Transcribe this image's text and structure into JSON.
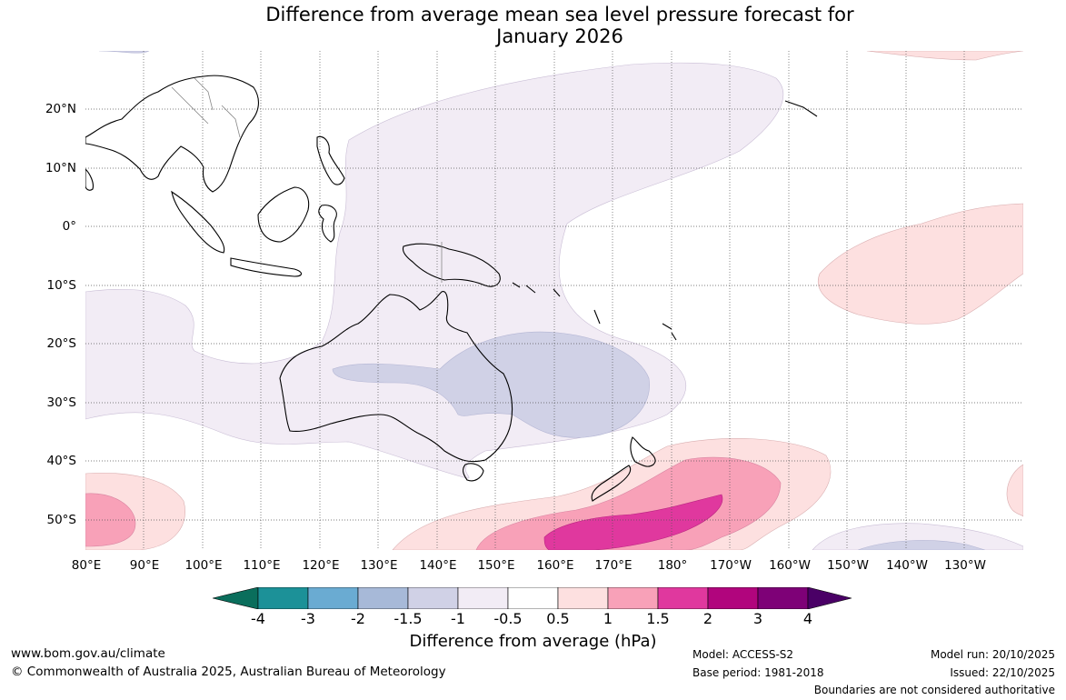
{
  "title": {
    "line1": "Difference from average mean sea level pressure forecast for",
    "line2": "January 2026"
  },
  "map": {
    "lat_labels": [
      "20°N",
      "10°N",
      "0°",
      "10°S",
      "20°S",
      "30°S",
      "40°S",
      "50°S"
    ],
    "lon_labels": [
      "80°E",
      "90°E",
      "100°E",
      "110°E",
      "120°E",
      "130°E",
      "140°E",
      "150°E",
      "160°E",
      "170°E",
      "180°",
      "170°W",
      "160°W",
      "150°W",
      "140°W",
      "130°W"
    ],
    "colors": {
      "ocean": "#ffffff",
      "coast": "#000000",
      "border": "#888888",
      "grid": "#555555"
    }
  },
  "colorbar": {
    "ticks": [
      "-4",
      "-3",
      "-2",
      "-1.5",
      "-1",
      "-0.5",
      "0.5",
      "1",
      "1.5",
      "2",
      "3",
      "4"
    ],
    "colors": [
      "#0a6e5c",
      "#1c9198",
      "#6aabd2",
      "#a7b9d8",
      "#d0d1e6",
      "#f2ecf5",
      "#ffffff",
      "#fde0e0",
      "#f8a1b8",
      "#e0389e",
      "#b1057d",
      "#7e0177",
      "#4a0066"
    ],
    "label": "Difference from average (hPa)"
  },
  "footer": {
    "website": "www.bom.gov.au/climate",
    "copyright": "© Commonwealth of Australia 2025, Australian Bureau of Meteorology",
    "model": "Model: ACCESS-S2",
    "base_period": "Base period: 1981-2018",
    "model_run": "Model run: 20/10/2025",
    "issued": "Issued: 22/10/2025",
    "disclaimer": "Boundaries are not considered authoritative"
  }
}
